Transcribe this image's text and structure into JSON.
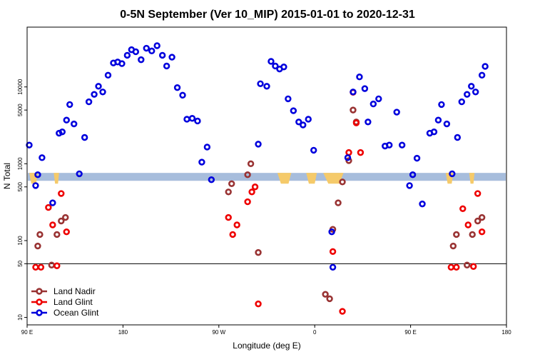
{
  "chart_data": {
    "type": "scatter",
    "title": "0-5N September (Ver 10_MIP)   2015-01-01 to 2020-12-31",
    "xlabel": "Longitude (deg E)",
    "ylabel": "N Total",
    "x_scale": "linear",
    "y_scale": "log",
    "xlim": [
      90,
      540
    ],
    "ylim": [
      8,
      60000
    ],
    "x_ticks": [
      {
        "value": 90,
        "label": "90 E"
      },
      {
        "value": 180,
        "label": "180"
      },
      {
        "value": 270,
        "label": "90 W"
      },
      {
        "value": 360,
        "label": "0"
      },
      {
        "value": 450,
        "label": "90 E"
      },
      {
        "value": 540,
        "label": "180"
      }
    ],
    "y_ticks": [
      {
        "value": 10,
        "label": "10"
      },
      {
        "value": 50,
        "label": "50"
      },
      {
        "value": 100,
        "label": "100"
      },
      {
        "value": 500,
        "label": "500"
      },
      {
        "value": 1000,
        "label": "1000"
      },
      {
        "value": 5000,
        "label": "5000"
      },
      {
        "value": 10000,
        "label": "10000"
      }
    ],
    "reference_line_y": 50,
    "band": {
      "y_low": 600,
      "y_high": 760,
      "color": "#a7bddc"
    },
    "land_patches": [
      [
        92,
        100
      ],
      [
        115,
        120
      ],
      [
        325,
        338
      ],
      [
        352,
        362
      ],
      [
        368,
        387
      ],
      [
        483,
        490
      ],
      [
        505,
        510
      ]
    ],
    "land_color": "#f5ca6a",
    "legend_position": "bottom-left",
    "series": [
      {
        "name": "Land Nadir",
        "color": "#993333",
        "points": [
          [
            100,
            85
          ],
          [
            102,
            120
          ],
          [
            113,
            48
          ],
          [
            118,
            120
          ],
          [
            122,
            180
          ],
          [
            126,
            200
          ],
          [
            279,
            430
          ],
          [
            282,
            550
          ],
          [
            297,
            720
          ],
          [
            300,
            1000
          ],
          [
            307,
            70
          ],
          [
            370,
            20
          ],
          [
            374,
            17.5
          ],
          [
            377,
            140
          ],
          [
            382,
            310
          ],
          [
            386,
            580
          ],
          [
            392,
            1100
          ],
          [
            396,
            5000
          ],
          [
            399,
            3500
          ],
          [
            490,
            85
          ],
          [
            493,
            120
          ],
          [
            503,
            48
          ],
          [
            508,
            120
          ],
          [
            513,
            180
          ],
          [
            517,
            200
          ]
        ]
      },
      {
        "name": "Land Glint",
        "color": "#ee0000",
        "points": [
          [
            98,
            45
          ],
          [
            103,
            45
          ],
          [
            110,
            270
          ],
          [
            114,
            160
          ],
          [
            118,
            47
          ],
          [
            122,
            410
          ],
          [
            127,
            130
          ],
          [
            279,
            200
          ],
          [
            283,
            120
          ],
          [
            287,
            160
          ],
          [
            297,
            320
          ],
          [
            301,
            430
          ],
          [
            304,
            500
          ],
          [
            307,
            15
          ],
          [
            377,
            72
          ],
          [
            386,
            12
          ],
          [
            392,
            1400
          ],
          [
            396,
            8500
          ],
          [
            399,
            3400
          ],
          [
            403,
            1400
          ],
          [
            488,
            45
          ],
          [
            493,
            45
          ],
          [
            499,
            260
          ],
          [
            504,
            160
          ],
          [
            509,
            46
          ],
          [
            513,
            410
          ],
          [
            517,
            130
          ]
        ]
      },
      {
        "name": "Ocean Glint",
        "color": "#0000dd",
        "points": [
          [
            92,
            1750
          ],
          [
            98,
            520
          ],
          [
            100,
            720
          ],
          [
            104,
            1200
          ],
          [
            114,
            310
          ],
          [
            120,
            2500
          ],
          [
            123,
            2600
          ],
          [
            127,
            3700
          ],
          [
            130,
            5900
          ],
          [
            134,
            3300
          ],
          [
            139,
            740
          ],
          [
            144,
            2200
          ],
          [
            148,
            6400
          ],
          [
            153,
            8000
          ],
          [
            157,
            10200
          ],
          [
            161,
            8600
          ],
          [
            166,
            14200
          ],
          [
            171,
            20500
          ],
          [
            175,
            21100
          ],
          [
            179,
            20100
          ],
          [
            184,
            25800
          ],
          [
            188,
            30500
          ],
          [
            192,
            28700
          ],
          [
            197,
            22600
          ],
          [
            202,
            31900
          ],
          [
            207,
            29400
          ],
          [
            212,
            34400
          ],
          [
            217,
            25800
          ],
          [
            221,
            18700
          ],
          [
            226,
            24400
          ],
          [
            231,
            9800
          ],
          [
            236,
            7800
          ],
          [
            240,
            3800
          ],
          [
            245,
            3900
          ],
          [
            250,
            3600
          ],
          [
            254,
            1050
          ],
          [
            259,
            1650
          ],
          [
            263,
            620
          ],
          [
            307,
            1800
          ],
          [
            309,
            11000
          ],
          [
            315,
            10200
          ],
          [
            319,
            21500
          ],
          [
            323,
            18700
          ],
          [
            327,
            17100
          ],
          [
            331,
            18200
          ],
          [
            335,
            7000
          ],
          [
            340,
            4900
          ],
          [
            345,
            3500
          ],
          [
            349,
            3200
          ],
          [
            354,
            3800
          ],
          [
            359,
            1500
          ],
          [
            376,
            130
          ],
          [
            377,
            45
          ],
          [
            391,
            1200
          ],
          [
            396,
            8600
          ],
          [
            402,
            13500
          ],
          [
            407,
            9500
          ],
          [
            410,
            3500
          ],
          [
            415,
            6000
          ],
          [
            420,
            7000
          ],
          [
            426,
            1700
          ],
          [
            430,
            1750
          ],
          [
            437,
            4700
          ],
          [
            442,
            1750
          ],
          [
            449,
            520
          ],
          [
            452,
            720
          ],
          [
            456,
            1180
          ],
          [
            461,
            300
          ],
          [
            468,
            2500
          ],
          [
            472,
            2600
          ],
          [
            476,
            3700
          ],
          [
            479,
            5900
          ],
          [
            484,
            3300
          ],
          [
            489,
            740
          ],
          [
            494,
            2200
          ],
          [
            498,
            6400
          ],
          [
            503,
            8000
          ],
          [
            507,
            10200
          ],
          [
            511,
            8600
          ],
          [
            517,
            14200
          ],
          [
            520,
            18500
          ]
        ]
      }
    ]
  }
}
